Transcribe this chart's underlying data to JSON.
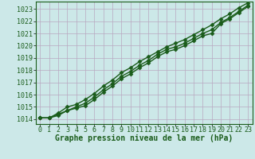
{
  "xlabel": "Graphe pression niveau de la mer (hPa)",
  "xlim": [
    -0.5,
    23.5
  ],
  "ylim": [
    1013.6,
    1023.6
  ],
  "yticks": [
    1014,
    1015,
    1016,
    1017,
    1018,
    1019,
    1020,
    1021,
    1022,
    1023
  ],
  "xticks": [
    0,
    1,
    2,
    3,
    4,
    5,
    6,
    7,
    8,
    9,
    10,
    11,
    12,
    13,
    14,
    15,
    16,
    17,
    18,
    19,
    20,
    21,
    22,
    23
  ],
  "background_color": "#cce8e8",
  "grid_color": "#b8a8c0",
  "line_color": "#1a5c1a",
  "line1": [
    1014.1,
    1014.1,
    1014.4,
    1014.7,
    1014.9,
    1015.1,
    1015.6,
    1016.2,
    1016.7,
    1017.3,
    1017.7,
    1018.2,
    1018.6,
    1019.1,
    1019.5,
    1019.7,
    1020.0,
    1020.4,
    1020.8,
    1021.0,
    1021.8,
    1022.2,
    1022.7,
    1023.2
  ],
  "line2": [
    1014.1,
    1014.1,
    1014.3,
    1014.7,
    1015.0,
    1015.3,
    1015.8,
    1016.4,
    1016.9,
    1017.5,
    1017.9,
    1018.4,
    1018.8,
    1019.3,
    1019.7,
    1019.9,
    1020.2,
    1020.6,
    1021.0,
    1021.3,
    1021.9,
    1022.3,
    1022.8,
    1023.3
  ],
  "line3": [
    1014.1,
    1014.1,
    1014.5,
    1015.0,
    1015.2,
    1015.6,
    1016.1,
    1016.7,
    1017.2,
    1017.8,
    1018.2,
    1018.7,
    1019.1,
    1019.5,
    1019.9,
    1020.2,
    1020.5,
    1020.9,
    1021.3,
    1021.7,
    1022.2,
    1022.6,
    1023.1,
    1023.5
  ],
  "marker": "D",
  "markersize": 2.5,
  "linewidth": 1.0,
  "label_fontsize": 7.0,
  "tick_fontsize": 6.0
}
